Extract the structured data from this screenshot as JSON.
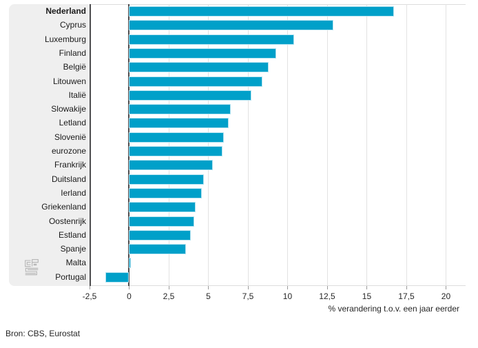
{
  "chart_data": {
    "type": "bar",
    "orientation": "horizontal",
    "title": "",
    "xlabel": "% verandering t.o.v. een jaar eerder",
    "ylabel": "",
    "categories": [
      "Nederland",
      "Cyprus",
      "Luxemburg",
      "Finland",
      "België",
      "Litouwen",
      "Italië",
      "Slowakije",
      "Letland",
      "Slovenië",
      "eurozone",
      "Frankrijk",
      "Duitsland",
      "Ierland",
      "Griekenland",
      "Oostenrijk",
      "Estland",
      "Spanje",
      "Malta",
      "Portugal"
    ],
    "values": [
      16.7,
      12.9,
      10.4,
      9.3,
      8.8,
      8.4,
      7.7,
      6.4,
      6.3,
      6.0,
      5.9,
      5.3,
      4.7,
      4.6,
      4.2,
      4.1,
      3.9,
      3.6,
      0.1,
      -1.5
    ],
    "highlight_category": "Nederland",
    "xlim": [
      -2.5,
      21.24
    ],
    "xticks": [
      -2.5,
      0,
      2.5,
      5,
      7.5,
      10,
      12.5,
      15,
      17.5,
      20
    ],
    "xtick_labels": [
      "-2,5",
      "0",
      "2,5",
      "5",
      "7,5",
      "10",
      "12,5",
      "15",
      "17,5",
      "20"
    ],
    "grid": true,
    "legend": false,
    "bar_color": "#00a0c9",
    "bar_edge_color": "#b7e4f1"
  },
  "source": "Bron: CBS, Eurostat",
  "logo_name": "cbs-logo"
}
